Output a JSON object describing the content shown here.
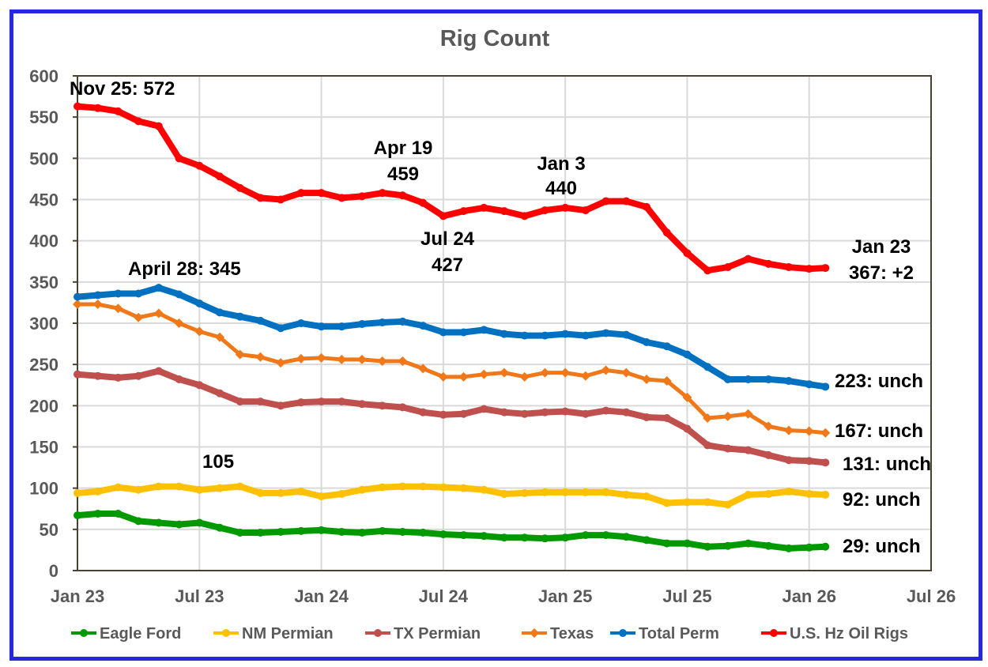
{
  "chart_data": {
    "type": "line",
    "title": "Rig Count",
    "xlabel": "",
    "ylabel": "",
    "x_unit": "months since Jan 2023",
    "xlim": [
      0,
      42
    ],
    "ylim": [
      0,
      600
    ],
    "grid": true,
    "legend_placement": "bottom",
    "x_ticks": [
      {
        "m": 0,
        "label": "Jan 23"
      },
      {
        "m": 6,
        "label": "Jul 23"
      },
      {
        "m": 12,
        "label": "Jan 24"
      },
      {
        "m": 18,
        "label": "Jul 24"
      },
      {
        "m": 24,
        "label": "Jan 25"
      },
      {
        "m": 30,
        "label": "Jul 25"
      },
      {
        "m": 36,
        "label": "Jan 26"
      },
      {
        "m": 42,
        "label": "Jul 26"
      }
    ],
    "y_ticks": [
      "0",
      "50",
      "100",
      "150",
      "200",
      "250",
      "300",
      "350",
      "400",
      "450",
      "500",
      "550",
      "600"
    ],
    "x": [
      0,
      1,
      2,
      3,
      4,
      5,
      6,
      7,
      8,
      9,
      10,
      11,
      12,
      13,
      14,
      15,
      16,
      17,
      18,
      19,
      20,
      21,
      22,
      23,
      24,
      25,
      26,
      27,
      28,
      29,
      30,
      31,
      32,
      33,
      34,
      35,
      36,
      36.8
    ],
    "series": [
      {
        "name": "Eagle Ford",
        "color": "#009900",
        "marker": "circle",
        "values": [
          67,
          69,
          69,
          60,
          58,
          56,
          58,
          52,
          46,
          46,
          47,
          48,
          49,
          47,
          46,
          48,
          47,
          46,
          44,
          43,
          42,
          40,
          40,
          39,
          40,
          43,
          43,
          41,
          37,
          33,
          33,
          29,
          30,
          33,
          30,
          27,
          28,
          29
        ]
      },
      {
        "name": "NM Permian",
        "color": "#FFC000",
        "marker": "circle",
        "values": [
          94,
          96,
          101,
          98,
          102,
          102,
          98,
          100,
          102,
          94,
          94,
          96,
          90,
          93,
          98,
          101,
          102,
          102,
          101,
          100,
          98,
          93,
          94,
          95,
          95,
          95,
          95,
          92,
          90,
          82,
          83,
          83,
          80,
          92,
          93,
          96,
          93,
          92
        ]
      },
      {
        "name": "TX Permian",
        "color": "#C0504D",
        "marker": "circle",
        "values": [
          238,
          236,
          234,
          236,
          242,
          232,
          225,
          215,
          205,
          205,
          200,
          204,
          205,
          205,
          202,
          200,
          198,
          192,
          189,
          190,
          196,
          192,
          190,
          192,
          193,
          190,
          194,
          192,
          186,
          185,
          172,
          152,
          148,
          146,
          140,
          134,
          133,
          131
        ]
      },
      {
        "name": "Texas",
        "color": "#F07818",
        "marker": "diamond",
        "values": [
          323,
          323,
          318,
          307,
          312,
          300,
          290,
          283,
          262,
          259,
          252,
          257,
          258,
          256,
          256,
          254,
          254,
          245,
          235,
          235,
          238,
          240,
          235,
          240,
          240,
          236,
          243,
          240,
          232,
          230,
          210,
          185,
          187,
          190,
          175,
          170,
          169,
          167
        ]
      },
      {
        "name": "Total Perm",
        "color": "#0070C0",
        "marker": "circle",
        "values": [
          332,
          334,
          336,
          336,
          343,
          335,
          324,
          313,
          308,
          303,
          294,
          300,
          296,
          296,
          299,
          301,
          302,
          297,
          289,
          289,
          292,
          287,
          285,
          285,
          287,
          285,
          288,
          286,
          277,
          272,
          262,
          247,
          232,
          232,
          232,
          230,
          226,
          223
        ]
      },
      {
        "name": "U.S. Hz Oil Rigs",
        "color": "#FF0000",
        "marker": "circle",
        "values": [
          563,
          561,
          557,
          545,
          539,
          500,
          491,
          478,
          464,
          452,
          450,
          458,
          458,
          452,
          454,
          458,
          455,
          446,
          430,
          436,
          440,
          436,
          430,
          437,
          440,
          437,
          448,
          448,
          441,
          410,
          385,
          364,
          368,
          378,
          372,
          368,
          366,
          367
        ]
      }
    ],
    "annotations": {
      "nov25": "Nov 25: 572",
      "april28": "April 28: 345",
      "nm_peak": "105",
      "apr19_date": "Apr 19",
      "apr19_val": "459",
      "jan3_date": "Jan 3",
      "jan3_val": "440",
      "jul24_date": "Jul 24",
      "jul24_val": "427",
      "jan23_date": "Jan 23",
      "jan23_val": "367: +2",
      "total_perm_end": "223: unch",
      "texas_end": "167: unch",
      "tx_permian_end": "131: unch",
      "nm_permian_end": "92: unch",
      "eagle_ford_end": "29: unch"
    }
  }
}
